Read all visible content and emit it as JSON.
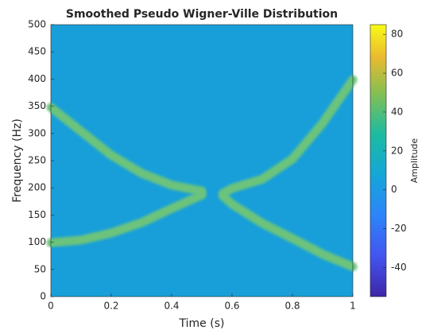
{
  "chart_data": {
    "type": "spectrogram",
    "title": "Smoothed Pseudo Wigner-Ville Distribution",
    "xlabel": "Time (s)",
    "ylabel": "Frequency (Hz)",
    "colorbar_label": "Amplitude",
    "xlim": [
      0,
      1
    ],
    "xticks": [
      0,
      0.2,
      0.4,
      0.6,
      0.8,
      1
    ],
    "ylim": [
      0,
      500
    ],
    "yticks": [
      0,
      50,
      100,
      150,
      200,
      250,
      300,
      350,
      400,
      450,
      500
    ],
    "clim": [
      -55,
      85
    ],
    "cticks": [
      -40,
      -20,
      0,
      20,
      40,
      60,
      80
    ],
    "plot_color": "#189fd9",
    "series": [
      {
        "color": "#6cc47c",
        "x": [
          0,
          0.1,
          0.2,
          0.3,
          0.4,
          0.5
        ],
        "values": [
          348,
          304,
          260,
          227,
          205,
          194
        ]
      },
      {
        "color": "#6cc47c",
        "x": [
          0,
          0.1,
          0.2,
          0.3,
          0.4,
          0.5
        ],
        "values": [
          99,
          104,
          117,
          136,
          162,
          187
        ]
      },
      {
        "color": "#6cc47c",
        "x": [
          0.57,
          0.6,
          0.7,
          0.8,
          0.9,
          1
        ],
        "values": [
          190,
          199,
          216,
          253,
          319,
          399
        ]
      },
      {
        "color": "#6cc47c",
        "x": [
          0.57,
          0.6,
          0.7,
          0.8,
          0.9,
          1
        ],
        "values": [
          185,
          170,
          135,
          107,
          78,
          55
        ]
      }
    ]
  }
}
